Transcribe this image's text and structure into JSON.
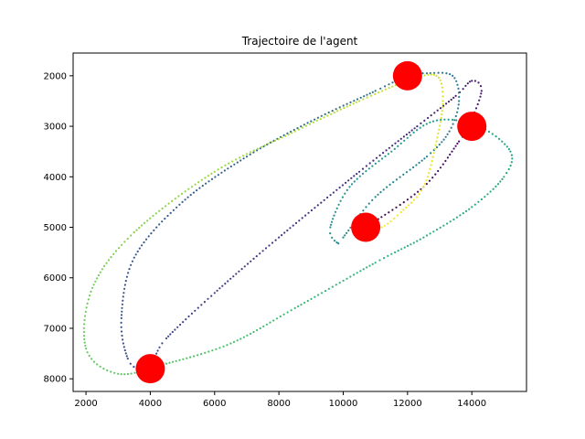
{
  "chart_data": {
    "type": "scatter",
    "title": "Trajectoire de l'agent",
    "xlabel": "",
    "ylabel": "",
    "xlim": [
      1600,
      15700
    ],
    "ylim": [
      8250,
      1550
    ],
    "y_inverted": true,
    "grid": false,
    "xticks": [
      2000,
      4000,
      6000,
      8000,
      10000,
      12000,
      14000
    ],
    "yticks": [
      2000,
      3000,
      4000,
      5000,
      6000,
      7000,
      8000
    ],
    "colormap": "viridis",
    "trajectory_waypoints": [
      [
        10700,
        5000
      ],
      [
        12500,
        4200
      ],
      [
        13600,
        3300
      ],
      [
        13900,
        3000
      ],
      [
        14300,
        2300
      ],
      [
        14000,
        2100
      ],
      [
        13500,
        2400
      ],
      [
        12300,
        3000
      ],
      [
        10500,
        3900
      ],
      [
        8000,
        5200
      ],
      [
        6000,
        6300
      ],
      [
        4500,
        7200
      ],
      [
        4100,
        7600
      ],
      [
        3700,
        7800
      ],
      [
        3300,
        7600
      ],
      [
        3100,
        6800
      ],
      [
        3500,
        5600
      ],
      [
        5000,
        4500
      ],
      [
        7000,
        3600
      ],
      [
        9000,
        2900
      ],
      [
        11000,
        2300
      ],
      [
        12000,
        2000
      ],
      [
        12600,
        1950
      ],
      [
        13400,
        2000
      ],
      [
        13600,
        2500
      ],
      [
        13300,
        3100
      ],
      [
        12600,
        3600
      ],
      [
        11000,
        4400
      ],
      [
        10000,
        5200
      ],
      [
        9800,
        5300
      ],
      [
        9600,
        5000
      ],
      [
        10200,
        4200
      ],
      [
        11500,
        3500
      ],
      [
        12800,
        2900
      ],
      [
        14200,
        3000
      ],
      [
        15200,
        3500
      ],
      [
        15000,
        4000
      ],
      [
        14000,
        4600
      ],
      [
        12500,
        5200
      ],
      [
        11000,
        5700
      ],
      [
        8500,
        6600
      ],
      [
        6500,
        7300
      ],
      [
        4500,
        7700
      ],
      [
        3000,
        7900
      ],
      [
        2000,
        7400
      ],
      [
        2200,
        6200
      ],
      [
        3500,
        5100
      ],
      [
        6000,
        3900
      ],
      [
        8500,
        3100
      ],
      [
        10500,
        2500
      ],
      [
        12000,
        2100
      ],
      [
        12900,
        2000
      ],
      [
        13100,
        2500
      ],
      [
        12900,
        3300
      ],
      [
        12500,
        4200
      ],
      [
        11800,
        4700
      ],
      [
        11200,
        5000
      ],
      [
        10800,
        5000
      ]
    ],
    "markers": {
      "color": "#ff0000",
      "points": [
        {
          "x": 4000,
          "y": 7800
        },
        {
          "x": 10700,
          "y": 5000
        },
        {
          "x": 12000,
          "y": 2000
        },
        {
          "x": 14000,
          "y": 3000
        }
      ]
    }
  }
}
